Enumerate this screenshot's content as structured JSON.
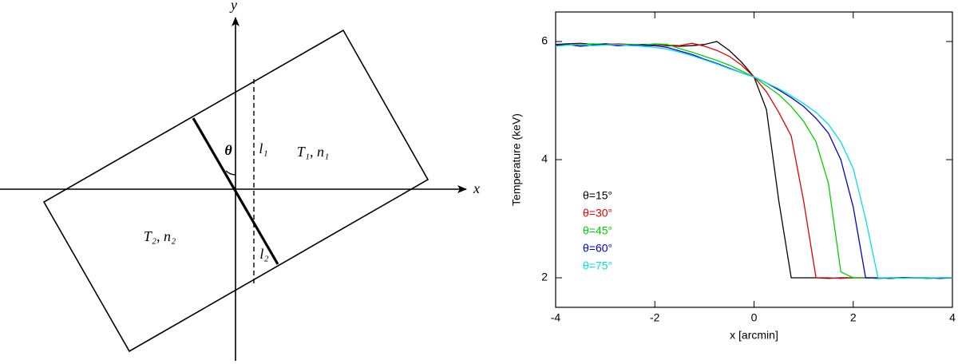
{
  "diagram": {
    "y_axis": "y",
    "x_axis": "x",
    "angle": "θ",
    "l1": "l₁",
    "region1": "T₁, n₁",
    "l2": "l₂",
    "region2": "T₂, n₂"
  },
  "chart_data": {
    "type": "line",
    "x_label": "x [arcmin]",
    "y_label": "Temperature (keV)",
    "xlim": [
      -4,
      4
    ],
    "ylim": [
      1.5,
      6.5
    ],
    "xticks": [
      -4,
      -2,
      0,
      2,
      4
    ],
    "yticks": [
      2,
      4,
      6
    ],
    "x": [
      -4,
      -3.75,
      -3.5,
      -3.25,
      -3,
      -2.75,
      -2.5,
      -2.25,
      -2,
      -1.75,
      -1.5,
      -1.25,
      -1,
      -0.75,
      -0.5,
      -0.25,
      0,
      0.25,
      0.5,
      0.75,
      1,
      1.25,
      1.5,
      1.75,
      2,
      2.25,
      2.5,
      2.75,
      3,
      3.25,
      3.5,
      3.75,
      4
    ],
    "series": [
      {
        "name": "θ=15°",
        "color": "#000000",
        "values": [
          5.95,
          5.96,
          5.97,
          5.95,
          5.96,
          5.95,
          5.94,
          5.95,
          5.95,
          5.93,
          5.92,
          5.93,
          5.95,
          6.0,
          5.85,
          5.65,
          5.4,
          4.85,
          3.3,
          2.0,
          2.0,
          2.0,
          1.99,
          2.0,
          2.0,
          2.0,
          1.99,
          2.0,
          2.0,
          2.0,
          1.99,
          2.0,
          2.0
        ]
      },
      {
        "name": "θ=30°",
        "color": "#e00000",
        "values": [
          5.94,
          5.95,
          5.96,
          5.94,
          5.95,
          5.96,
          5.95,
          5.94,
          5.95,
          5.94,
          5.93,
          5.97,
          5.92,
          5.85,
          5.75,
          5.6,
          5.4,
          5.15,
          4.8,
          4.4,
          3.3,
          2.0,
          2.0,
          1.99,
          2.0,
          2.0,
          2.0,
          1.99,
          2.0,
          2.0,
          2.0,
          1.99,
          2.0
        ]
      },
      {
        "name": "θ=45°",
        "color": "#00d000",
        "values": [
          5.93,
          5.95,
          5.94,
          5.96,
          5.95,
          5.94,
          5.95,
          5.94,
          5.96,
          5.95,
          5.88,
          5.82,
          5.75,
          5.68,
          5.6,
          5.5,
          5.4,
          5.25,
          5.1,
          4.9,
          4.65,
          4.3,
          3.6,
          2.1,
          2.0,
          2.0,
          1.99,
          2.0,
          2.0,
          2.0,
          1.99,
          2.0,
          2.0
        ]
      },
      {
        "name": "θ=60°",
        "color": "#0000c8",
        "values": [
          5.93,
          5.95,
          5.92,
          5.94,
          5.95,
          5.93,
          5.94,
          5.93,
          5.93,
          5.9,
          5.84,
          5.78,
          5.7,
          5.63,
          5.55,
          5.47,
          5.4,
          5.3,
          5.18,
          5.05,
          4.9,
          4.7,
          4.45,
          4.0,
          3.2,
          2.0,
          2.0,
          1.99,
          2.0,
          2.0,
          2.0,
          1.99,
          2.0
        ]
      },
      {
        "name": "θ=75°",
        "color": "#00e0e8",
        "values": [
          5.92,
          5.94,
          5.95,
          5.93,
          5.94,
          5.95,
          5.93,
          5.92,
          5.9,
          5.87,
          5.82,
          5.76,
          5.69,
          5.62,
          5.54,
          5.47,
          5.4,
          5.3,
          5.2,
          5.08,
          4.95,
          4.8,
          4.6,
          4.3,
          3.85,
          3.0,
          2.0,
          2.0,
          1.99,
          2.0,
          2.0,
          2.0,
          2.0
        ]
      }
    ]
  }
}
